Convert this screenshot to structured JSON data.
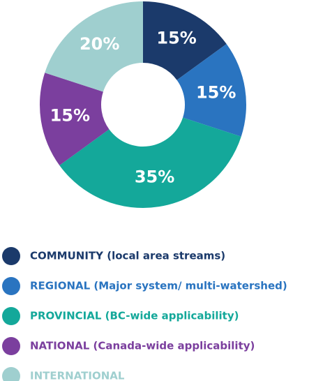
{
  "chart_data": {
    "type": "pie",
    "categories": [
      "COMMUNITY (local area streams)",
      "REGIONAL (Major system/ multi-watershed)",
      "PROVINCIAL (BC-wide applicability)",
      "NATIONAL (Canada-wide applicability)",
      "INTERNATIONAL"
    ],
    "values": [
      15,
      15,
      35,
      15,
      20
    ],
    "value_labels": [
      "15%",
      "15%",
      "35%",
      "15%",
      "20%"
    ],
    "colors": [
      "#1b3a6b",
      "#2a74c0",
      "#14a89a",
      "#7b3f9e",
      "#9fcfcf"
    ]
  }
}
